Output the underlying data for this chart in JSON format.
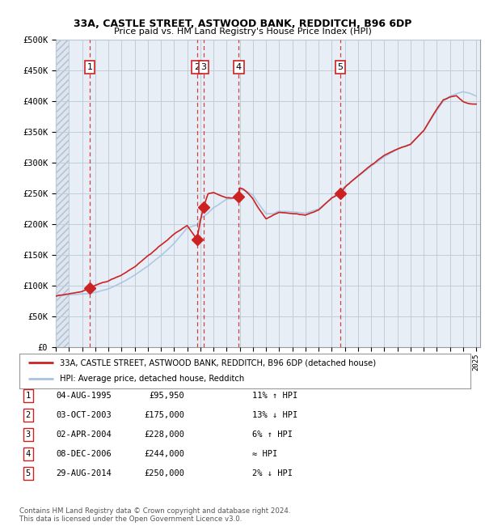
{
  "title1": "33A, CASTLE STREET, ASTWOOD BANK, REDDITCH, B96 6DP",
  "title2": "Price paid vs. HM Land Registry's House Price Index (HPI)",
  "legend_line1": "33A, CASTLE STREET, ASTWOOD BANK, REDDITCH, B96 6DP (detached house)",
  "legend_line2": "HPI: Average price, detached house, Redditch",
  "footer1": "Contains HM Land Registry data © Crown copyright and database right 2024.",
  "footer2": "This data is licensed under the Open Government Licence v3.0.",
  "ylim": [
    0,
    500000
  ],
  "yticks": [
    0,
    50000,
    100000,
    150000,
    200000,
    250000,
    300000,
    350000,
    400000,
    450000,
    500000
  ],
  "ytick_labels": [
    "£0",
    "£50K",
    "£100K",
    "£150K",
    "£200K",
    "£250K",
    "£300K",
    "£350K",
    "£400K",
    "£450K",
    "£500K"
  ],
  "hpi_color": "#a8c4e0",
  "price_color": "#cc2222",
  "bg_color": "#e8eef6",
  "grid_color": "#c0ccd8",
  "sale_points": [
    {
      "year": 1995.58,
      "price": 95950,
      "label": "1"
    },
    {
      "year": 2003.75,
      "price": 175000,
      "label": "2"
    },
    {
      "year": 2004.25,
      "price": 228000,
      "label": "3"
    },
    {
      "year": 2006.92,
      "price": 244000,
      "label": "4"
    },
    {
      "year": 2014.66,
      "price": 250000,
      "label": "5"
    }
  ],
  "table_rows": [
    {
      "num": "1",
      "date": "04-AUG-1995",
      "price": "£95,950",
      "relation": "11% ↑ HPI"
    },
    {
      "num": "2",
      "date": "03-OCT-2003",
      "price": "£175,000",
      "relation": "13% ↓ HPI"
    },
    {
      "num": "3",
      "date": "02-APR-2004",
      "price": "£228,000",
      "relation": "6% ↑ HPI"
    },
    {
      "num": "4",
      "date": "08-DEC-2006",
      "price": "£244,000",
      "relation": "≈ HPI"
    },
    {
      "num": "5",
      "date": "29-AUG-2014",
      "price": "£250,000",
      "relation": "2% ↓ HPI"
    }
  ],
  "hpi_anchors_x": [
    1993,
    1994,
    1995,
    1995.58,
    1996,
    1997,
    1998,
    1999,
    2000,
    2001,
    2002,
    2003,
    2003.75,
    2004,
    2004.5,
    2005,
    2006,
    2006.92,
    2007,
    2007.5,
    2008,
    2008.5,
    2009,
    2009.5,
    2010,
    2011,
    2012,
    2013,
    2014,
    2014.66,
    2015,
    2016,
    2017,
    2018,
    2019,
    2020,
    2021,
    2022,
    2022.5,
    2023,
    2023.5,
    2024,
    2024.5,
    2025
  ],
  "hpi_anchors_y": [
    83000,
    85000,
    87000,
    88000,
    90000,
    96000,
    106000,
    118000,
    133000,
    150000,
    170000,
    195000,
    200000,
    210000,
    218000,
    228000,
    242000,
    244000,
    258000,
    255000,
    248000,
    232000,
    218000,
    218000,
    222000,
    220000,
    218000,
    225000,
    242000,
    255000,
    262000,
    278000,
    295000,
    310000,
    322000,
    330000,
    352000,
    385000,
    400000,
    408000,
    412000,
    415000,
    412000,
    408000
  ],
  "price_anchors_x": [
    1993,
    1994,
    1995,
    1995.58,
    1996,
    1997,
    1998,
    1999,
    2000,
    2001,
    2002,
    2003,
    2003.75,
    2004.0,
    2004.25,
    2004.6,
    2005,
    2005.5,
    2006,
    2006.5,
    2006.92,
    2007,
    2007.3,
    2007.6,
    2008,
    2008.5,
    2009,
    2009.5,
    2010,
    2011,
    2012,
    2013,
    2014,
    2014.66,
    2015,
    2016,
    2017,
    2018,
    2019,
    2020,
    2021,
    2022,
    2022.5,
    2023,
    2023.5,
    2024,
    2024.5,
    2025
  ],
  "price_anchors_y": [
    83000,
    86000,
    90000,
    95950,
    99000,
    106000,
    116000,
    130000,
    148000,
    165000,
    183000,
    197000,
    175000,
    205000,
    228000,
    250000,
    252000,
    248000,
    244000,
    244000,
    244000,
    260000,
    258000,
    252000,
    242000,
    225000,
    210000,
    215000,
    220000,
    218000,
    215000,
    222000,
    242000,
    250000,
    260000,
    278000,
    296000,
    312000,
    322000,
    330000,
    352000,
    388000,
    402000,
    407000,
    410000,
    400000,
    396000,
    395000
  ]
}
